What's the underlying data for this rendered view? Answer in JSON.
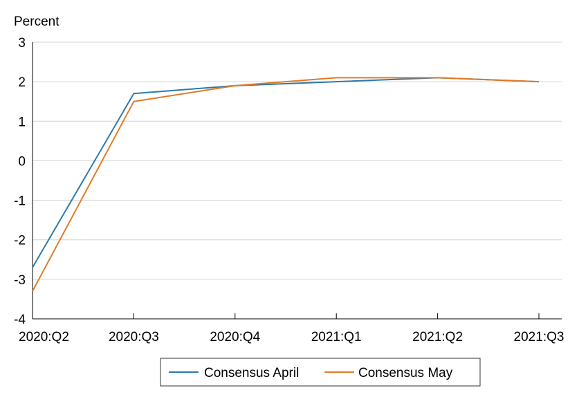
{
  "chart_data": {
    "type": "line",
    "title": "",
    "ylabel": "Percent",
    "xlabel": "",
    "categories": [
      "2020:Q2",
      "2020:Q3",
      "2020:Q4",
      "2021:Q1",
      "2021:Q2",
      "2021:Q3"
    ],
    "ylim": [
      -4,
      3
    ],
    "yticks": [
      "3",
      "2",
      "1",
      "0",
      "-1",
      "-2",
      "-3",
      "-4"
    ],
    "grid": true,
    "legend_position": "bottom-center",
    "series": [
      {
        "name": "Consensus April",
        "color": "#2a7aa8",
        "values": [
          -2.7,
          1.7,
          1.9,
          2.0,
          2.1,
          2.0
        ]
      },
      {
        "name": "Consensus May",
        "color": "#e07b24",
        "values": [
          -3.3,
          1.5,
          1.9,
          2.1,
          2.1,
          2.0
        ]
      }
    ]
  }
}
